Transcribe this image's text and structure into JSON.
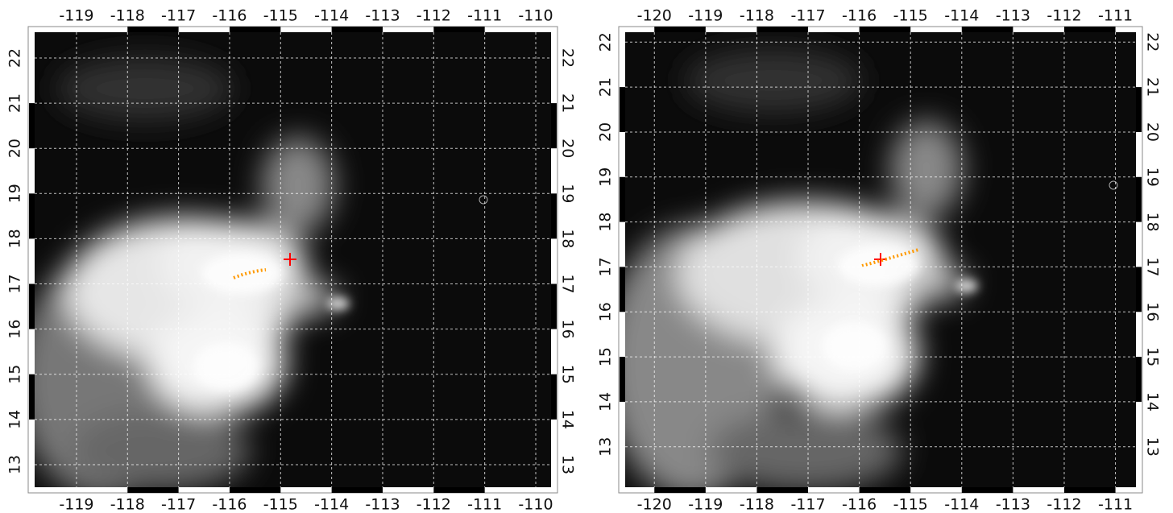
{
  "panels": [
    {
      "xlim": [
        -119.82,
        -109.7
      ],
      "ylim": [
        12.5,
        22.57
      ],
      "xticks": [
        -119,
        -118,
        -117,
        -116,
        -115,
        -114,
        -113,
        -112,
        -111,
        -110
      ],
      "yticks": [
        13,
        14,
        15,
        16,
        17,
        18,
        19,
        20,
        21,
        22
      ]
    },
    {
      "xlim": [
        -120.57,
        -110.6
      ],
      "ylim": [
        12.1,
        22.22
      ],
      "xticks": [
        -120,
        -119,
        -118,
        -117,
        -116,
        -115,
        -114,
        -113,
        -112,
        -111
      ],
      "yticks": [
        13,
        14,
        15,
        16,
        17,
        18,
        19,
        20,
        21,
        22
      ]
    }
  ]
}
